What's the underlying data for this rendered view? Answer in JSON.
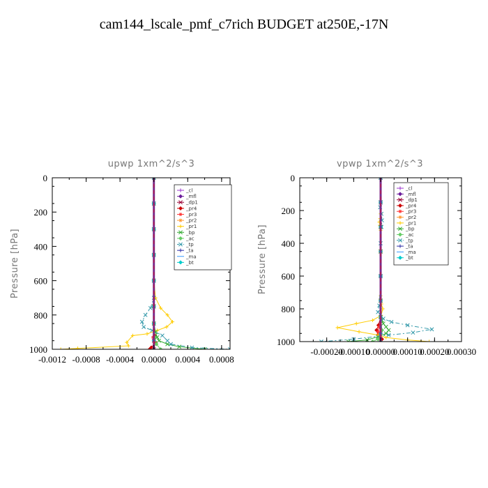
{
  "figure_title": "cam144_lscale_pmf_c7rich  BUDGET at250E,-17N",
  "chart_data": [
    {
      "type": "line",
      "title": "upwp   1xm^2/s^3",
      "ylabel": "Pressure [hPa]",
      "xlabel": "",
      "xlim": [
        -0.0012,
        0.0009
      ],
      "ylim": [
        1000,
        0
      ],
      "y_reversed": true,
      "xticks": [
        -0.0012,
        -0.0008,
        -0.0004,
        0.0,
        0.0004,
        0.0008
      ],
      "xtick_labels": [
        "-0.0012",
        "-0.0008",
        "-0.0004",
        "0.0000",
        "0.0004",
        "0.0008"
      ],
      "yticks": [
        0,
        200,
        400,
        600,
        800,
        1000
      ],
      "ytick_labels": [
        "0",
        "200",
        "400",
        "600",
        "800",
        "1000"
      ],
      "legend_position": "top-right",
      "series": [
        {
          "name": "_cl",
          "color": "#9933cc",
          "marker": "plus",
          "x": [
            0,
            0,
            0,
            0,
            0,
            0,
            0,
            0,
            0
          ],
          "y": [
            0,
            150,
            300,
            450,
            600,
            750,
            850,
            950,
            1000
          ]
        },
        {
          "name": "_mfl",
          "color": "#6a1b9a",
          "marker": "diamond",
          "x": [
            0,
            0,
            0,
            0,
            0,
            0,
            0,
            0,
            0
          ],
          "y": [
            0,
            150,
            300,
            450,
            600,
            750,
            850,
            950,
            1000
          ]
        },
        {
          "name": "_dp1",
          "color": "#990033",
          "marker": "x",
          "x": [
            0,
            0,
            0,
            0,
            0,
            0,
            0,
            0,
            0
          ],
          "y": [
            0,
            150,
            300,
            450,
            600,
            750,
            850,
            950,
            1000
          ]
        },
        {
          "name": "_pr4",
          "color": "#cc0000",
          "marker": "diamond",
          "x": [
            0,
            0,
            0,
            0,
            0,
            0,
            0,
            1e-05,
            2e-05,
            -3e-05,
            -5e-05
          ],
          "y": [
            0,
            150,
            300,
            450,
            600,
            750,
            850,
            920,
            960,
            990,
            1000
          ]
        },
        {
          "name": "_pr3",
          "color": "#ff3333",
          "marker": "star",
          "x": [
            0,
            0,
            0,
            0,
            0,
            0,
            0,
            -1e-05,
            1e-05,
            -2e-05
          ],
          "y": [
            0,
            150,
            300,
            450,
            600,
            750,
            850,
            930,
            970,
            1000
          ]
        },
        {
          "name": "_pr2",
          "color": "#ff9933",
          "marker": "star",
          "x": [
            0,
            0,
            0,
            0,
            0,
            0,
            0,
            0,
            0
          ],
          "y": [
            0,
            150,
            300,
            450,
            600,
            750,
            850,
            950,
            1000
          ]
        },
        {
          "name": "_pr1",
          "color": "#ffcc00",
          "marker": "plus",
          "x": [
            0,
            0,
            0,
            0,
            0,
            2e-05,
            8e-05,
            0.00016,
            0.00022,
            0.00015,
            4e-05,
            -8e-05,
            -0.00025,
            -0.00032,
            -0.0003,
            -0.0009,
            -0.0011
          ],
          "y": [
            0,
            150,
            300,
            450,
            600,
            700,
            760,
            800,
            840,
            870,
            890,
            910,
            920,
            960,
            980,
            995,
            1000
          ]
        },
        {
          "name": "_bp",
          "color": "#33aa33",
          "marker": "x",
          "x": [
            0,
            0,
            0,
            0,
            0,
            0,
            0,
            2e-05,
            4e-05,
            6e-05,
            0.00016,
            0.0003,
            0.0006
          ],
          "y": [
            0,
            150,
            300,
            450,
            600,
            750,
            850,
            900,
            930,
            950,
            970,
            985,
            1000
          ]
        },
        {
          "name": "_ac",
          "color": "#66cc66",
          "marker": "diamond",
          "x": [
            0,
            0,
            0,
            0,
            0,
            0,
            0,
            1e-05,
            3e-05,
            8e-05
          ],
          "y": [
            0,
            150,
            300,
            450,
            600,
            750,
            850,
            930,
            970,
            1000
          ]
        },
        {
          "name": "_tp",
          "color": "#3399aa",
          "marker": "x",
          "dash": "6,3,2,3",
          "x": [
            0,
            0,
            0,
            0,
            0,
            0,
            -4e-05,
            -0.0001,
            -0.00014,
            -0.00012,
            -2e-05,
            0.0001,
            0.00016,
            0.0002,
            0.00045,
            0.0009
          ],
          "y": [
            0,
            150,
            300,
            450,
            600,
            700,
            760,
            800,
            840,
            870,
            890,
            920,
            950,
            970,
            990,
            1000
          ]
        },
        {
          "name": "_ta",
          "color": "#3333aa",
          "marker": "plus",
          "x": [
            0,
            0,
            0,
            0,
            0,
            0,
            0,
            0,
            0
          ],
          "y": [
            0,
            150,
            300,
            450,
            600,
            750,
            850,
            950,
            1000
          ]
        },
        {
          "name": "_ma",
          "color": "#3399ff",
          "marker": "none",
          "x": [
            0,
            0,
            0,
            0,
            0,
            0,
            0,
            0,
            0
          ],
          "y": [
            0,
            150,
            300,
            450,
            600,
            750,
            850,
            950,
            1000
          ]
        },
        {
          "name": "_bt",
          "color": "#00cccc",
          "marker": "diamond",
          "x": [
            0,
            0,
            0,
            0,
            0,
            0,
            0,
            0,
            0
          ],
          "y": [
            0,
            150,
            300,
            450,
            600,
            750,
            850,
            950,
            1000
          ]
        }
      ]
    },
    {
      "type": "line",
      "title": "vpwp   1xm^2/s^3",
      "ylabel": "Pressure [hPa]",
      "xlabel": "",
      "xlim": [
        -0.0003,
        0.0003
      ],
      "ylim": [
        1000,
        0
      ],
      "y_reversed": true,
      "xticks": [
        -0.0003,
        -0.0002,
        -0.0001,
        0.0,
        0.0001,
        0.0002,
        0.0003
      ],
      "xtick_labels": [
        "",
        "-0.00020",
        "-0.00010",
        "0.00000",
        "0.00010",
        "0.00020",
        "0.00030"
      ],
      "yticks": [
        0,
        200,
        400,
        600,
        800,
        1000
      ],
      "ytick_labels": [
        "0",
        "200",
        "400",
        "600",
        "800",
        "1000"
      ],
      "legend_position": "top-right",
      "series": [
        {
          "name": "_cl",
          "color": "#9933cc",
          "marker": "plus",
          "x": [
            0,
            0,
            0,
            0,
            0,
            0,
            0,
            0,
            0
          ],
          "y": [
            0,
            150,
            300,
            450,
            600,
            750,
            850,
            950,
            1000
          ]
        },
        {
          "name": "_mfl",
          "color": "#6a1b9a",
          "marker": "diamond",
          "x": [
            0,
            0,
            0,
            0,
            0,
            0,
            0,
            0,
            0
          ],
          "y": [
            0,
            150,
            300,
            450,
            600,
            750,
            850,
            950,
            1000
          ]
        },
        {
          "name": "_dp1",
          "color": "#990033",
          "marker": "x",
          "x": [
            0,
            0,
            0,
            0,
            0,
            0,
            0,
            0,
            0
          ],
          "y": [
            0,
            150,
            300,
            450,
            600,
            750,
            850,
            950,
            1000
          ]
        },
        {
          "name": "_pr4",
          "color": "#cc0000",
          "marker": "diamond",
          "x": [
            0,
            0,
            0,
            0,
            0,
            0,
            0,
            -8e-06,
            -1.5e-05,
            -1e-05,
            5e-06,
            0
          ],
          "y": [
            0,
            150,
            300,
            450,
            600,
            750,
            850,
            900,
            930,
            960,
            985,
            1000
          ]
        },
        {
          "name": "_pr3",
          "color": "#ff3333",
          "marker": "star",
          "x": [
            0,
            0,
            0,
            0,
            0,
            0,
            0,
            -5e-06,
            -1e-05,
            -5e-06,
            0
          ],
          "y": [
            0,
            150,
            300,
            450,
            600,
            750,
            850,
            910,
            940,
            970,
            1000
          ]
        },
        {
          "name": "_pr2",
          "color": "#ff9933",
          "marker": "star",
          "x": [
            0,
            0,
            0,
            0,
            0,
            0,
            0,
            0,
            0
          ],
          "y": [
            0,
            150,
            300,
            450,
            600,
            750,
            850,
            950,
            1000
          ]
        },
        {
          "name": "_pr1",
          "color": "#ffcc00",
          "marker": "plus",
          "x": [
            0,
            0,
            -2e-06,
            -5e-06,
            -3e-06,
            0,
            0,
            0,
            0,
            3e-06,
            8e-06,
            2e-06,
            -3e-05,
            -9e-05,
            -0.00016,
            -8e-05,
            -1e-05,
            2e-05,
            0.0001,
            0.00018
          ],
          "y": [
            0,
            220,
            250,
            270,
            290,
            320,
            450,
            600,
            720,
            770,
            800,
            840,
            870,
            890,
            915,
            940,
            960,
            975,
            990,
            1000
          ]
        },
        {
          "name": "_bp",
          "color": "#33aa33",
          "marker": "x",
          "x": [
            0,
            0,
            0,
            0,
            0,
            0,
            0,
            5e-06,
            1e-05,
            2e-05,
            3e-05,
            2e-05,
            -1e-05,
            -5e-05,
            -0.00012
          ],
          "y": [
            0,
            150,
            300,
            450,
            600,
            750,
            850,
            870,
            890,
            910,
            930,
            950,
            970,
            990,
            1000
          ]
        },
        {
          "name": "_ac",
          "color": "#66cc66",
          "marker": "diamond",
          "x": [
            0,
            0,
            0,
            0,
            0,
            0,
            0,
            5e-06,
            0,
            -1e-05,
            -3e-05
          ],
          "y": [
            0,
            150,
            300,
            450,
            600,
            750,
            850,
            930,
            960,
            985,
            1000
          ]
        },
        {
          "name": "_tp",
          "color": "#3399aa",
          "marker": "x",
          "dash": "6,3,2,3",
          "x": [
            0,
            0,
            -2e-06,
            3e-06,
            5e-06,
            3e-06,
            0,
            0,
            -5e-06,
            -1e-05,
            1e-05,
            4e-05,
            0.0001,
            0.00019,
            0.00012,
            3e-05,
            -0.0001,
            -0.00022
          ],
          "y": [
            0,
            150,
            180,
            220,
            260,
            300,
            400,
            600,
            780,
            820,
            860,
            880,
            900,
            925,
            945,
            960,
            985,
            1000
          ]
        },
        {
          "name": "_ta",
          "color": "#3333aa",
          "marker": "plus",
          "x": [
            0,
            0,
            0,
            0,
            0,
            0,
            0,
            0,
            0
          ],
          "y": [
            0,
            150,
            300,
            450,
            600,
            750,
            850,
            950,
            1000
          ]
        },
        {
          "name": "_ma",
          "color": "#3399ff",
          "marker": "none",
          "x": [
            0,
            0,
            0,
            0,
            0,
            0,
            0,
            0,
            0
          ],
          "y": [
            0,
            150,
            300,
            450,
            600,
            750,
            850,
            950,
            1000
          ]
        },
        {
          "name": "_bt",
          "color": "#00cccc",
          "marker": "diamond",
          "x": [
            0,
            0,
            0,
            0,
            0,
            0,
            0,
            0,
            0
          ],
          "y": [
            0,
            150,
            300,
            450,
            600,
            750,
            850,
            950,
            1000
          ]
        }
      ]
    }
  ]
}
